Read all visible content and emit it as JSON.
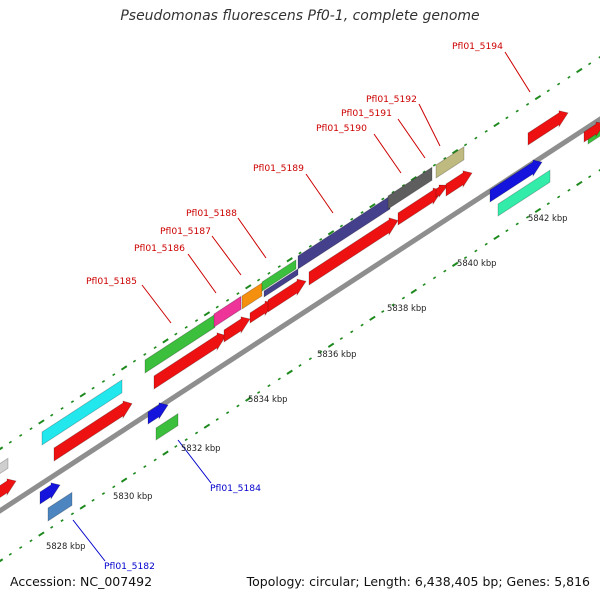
{
  "header": {
    "title": "Pseudomonas fluorescens Pf0-1, complete genome"
  },
  "footer": {
    "accession": "Accession: NC_007492",
    "summary": "Topology: circular; Length: 6,438,405 bp; Genes: 5,816"
  },
  "scale": {
    "ticks": [
      "5828 kbp",
      "5830 kbp",
      "5832 kbp",
      "5834 kbp",
      "5836 kbp",
      "5838 kbp",
      "5840 kbp",
      "5842 kbp"
    ]
  },
  "genes": {
    "top_labels": [
      "Pfl01_5185",
      "Pfl01_5186",
      "Pfl01_5187",
      "Pfl01_5188",
      "Pfl01_5189",
      "Pfl01_5190",
      "Pfl01_5191",
      "Pfl01_5192",
      "Pfl01_5194"
    ],
    "bottom_labels": [
      "Pfl01_5184",
      "Pfl01_5182"
    ]
  },
  "colors": {
    "backbone": "#8e8e8e",
    "top_label": "#cc0000",
    "bottom_label": "#0000cc",
    "cds_red": "#ee1111",
    "tick_green": "#1e8a1e",
    "gene_green": "#3cbf3c",
    "gene_cyan": "#22e8ee",
    "gene_pink": "#ee3399",
    "gene_orange": "#f5900f",
    "gene_navy": "#44408c",
    "gene_gray": "#5e5e5e",
    "gene_khaki": "#bfba80",
    "gene_blue": "#1414dd",
    "gene_mint": "#33ecaa",
    "gene_steel": "#4d85c0",
    "gene_silver": "#cfcfcf"
  }
}
